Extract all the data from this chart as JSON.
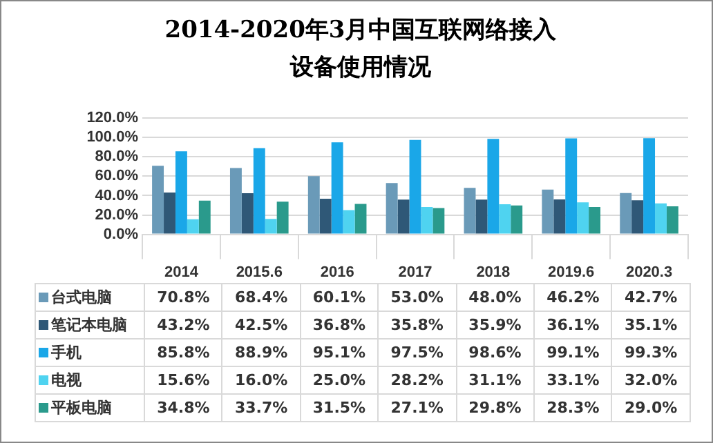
{
  "chart_data": {
    "type": "bar",
    "title": "2014-2020年3月中国互联网络接入设备使用情况",
    "categories": [
      "2014",
      "2015.6",
      "2016",
      "2017",
      "2018",
      "2019.6",
      "2020.3"
    ],
    "ylim": [
      0,
      120
    ],
    "yticks": [
      {
        "value": 0,
        "label": "0.0%"
      },
      {
        "value": 20,
        "label": "20.0%"
      },
      {
        "value": 40,
        "label": "40.0%"
      },
      {
        "value": 60,
        "label": "60.0%"
      },
      {
        "value": 80,
        "label": "80.0%"
      },
      {
        "value": 100,
        "label": "100.0%"
      },
      {
        "value": 120,
        "label": "120.0%"
      }
    ],
    "grid": "y",
    "legend": "bottom",
    "series": [
      {
        "name": "台式电脑",
        "color": "#6a9ab8",
        "values": [
          70.8,
          68.4,
          60.1,
          53.0,
          48.0,
          46.2,
          42.7
        ],
        "value_labels": [
          "70.8%",
          "68.4%",
          "60.1%",
          "53.0%",
          "48.0%",
          "46.2%",
          "42.7%"
        ]
      },
      {
        "name": "笔记本电脑",
        "color": "#2f5877",
        "values": [
          43.2,
          42.5,
          36.8,
          35.8,
          35.9,
          36.1,
          35.1
        ],
        "value_labels": [
          "43.2%",
          "42.5%",
          "36.8%",
          "35.8%",
          "35.9%",
          "36.1%",
          "35.1%"
        ]
      },
      {
        "name": "手机",
        "color": "#1aa7e8",
        "values": [
          85.8,
          88.9,
          95.1,
          97.5,
          98.6,
          99.1,
          99.3
        ],
        "value_labels": [
          "85.8%",
          "88.9%",
          "95.1%",
          "97.5%",
          "98.6%",
          "99.1%",
          "99.3%"
        ]
      },
      {
        "name": "电视",
        "color": "#4fd3f0",
        "values": [
          15.6,
          16.0,
          25.0,
          28.2,
          31.1,
          33.1,
          32.0
        ],
        "value_labels": [
          "15.6%",
          "16.0%",
          "25.0%",
          "28.2%",
          "31.1%",
          "33.1%",
          "32.0%"
        ]
      },
      {
        "name": "平板电脑",
        "color": "#2a9a8c",
        "values": [
          34.8,
          33.7,
          31.5,
          27.1,
          29.8,
          28.3,
          29.0
        ],
        "value_labels": [
          "34.8%",
          "33.7%",
          "31.5%",
          "27.1%",
          "29.8%",
          "28.3%",
          "29.0%"
        ]
      }
    ]
  }
}
